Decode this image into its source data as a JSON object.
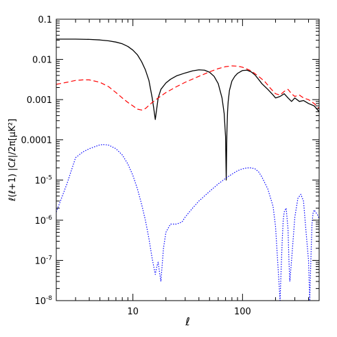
{
  "chart_data": {
    "type": "line",
    "title": "",
    "xlabel": "ℓ",
    "ylabel": "ℓ(ℓ+1) |Cℓ|/2π[μK²]",
    "xscale": "log",
    "yscale": "log",
    "xlim": [
      2,
      500
    ],
    "ylim": [
      1e-08,
      0.1
    ],
    "grid": false,
    "legend": "none",
    "x_ticks": [
      {
        "value": 10,
        "label": "10"
      },
      {
        "value": 100,
        "label": "100"
      }
    ],
    "y_ticks": [
      {
        "value": 0.1,
        "label": "0.1"
      },
      {
        "value": 0.01,
        "label": "0.01"
      },
      {
        "value": 0.001,
        "label": "0.001"
      },
      {
        "value": 0.0001,
        "label": "0.0001"
      },
      {
        "value": 1e-05,
        "label": "10",
        "exp": "-5"
      },
      {
        "value": 1e-06,
        "label": "10",
        "exp": "-6"
      },
      {
        "value": 1e-07,
        "label": "10",
        "exp": "-7"
      },
      {
        "value": 1e-08,
        "label": "10",
        "exp": "-8"
      }
    ],
    "series": [
      {
        "color": "#000000",
        "style": "solid",
        "x": [
          2,
          3,
          4,
          5,
          6,
          7,
          8,
          9,
          10,
          11,
          12,
          13,
          14,
          15,
          15.5,
          16,
          16.5,
          17,
          18,
          20,
          22,
          25,
          30,
          35,
          40,
          45,
          50,
          55,
          60,
          65,
          68,
          70,
          71,
          72,
          73,
          74,
          76,
          80,
          85,
          90,
          100,
          110,
          120,
          130,
          140,
          150,
          170,
          190,
          200,
          220,
          240,
          260,
          280,
          300,
          330,
          360,
          400,
          450,
          500
        ],
        "y": [
          0.032,
          0.032,
          0.0315,
          0.0305,
          0.029,
          0.027,
          0.0245,
          0.021,
          0.017,
          0.013,
          0.0088,
          0.0055,
          0.003,
          0.0011,
          0.0006,
          0.00032,
          0.0006,
          0.0011,
          0.0018,
          0.0026,
          0.0032,
          0.0039,
          0.0046,
          0.0052,
          0.0055,
          0.0054,
          0.0048,
          0.0038,
          0.0025,
          0.0011,
          0.00045,
          0.00012,
          1e-05,
          0.00015,
          0.0005,
          0.0009,
          0.0017,
          0.0029,
          0.0038,
          0.0045,
          0.0053,
          0.0054,
          0.0049,
          0.0041,
          0.0032,
          0.0025,
          0.0018,
          0.0013,
          0.0011,
          0.0012,
          0.0014,
          0.0011,
          0.0009,
          0.0011,
          0.0009,
          0.00095,
          0.0008,
          0.0007,
          0.0005
        ]
      },
      {
        "color": "#ff0000",
        "style": "dashed",
        "x": [
          2,
          2.5,
          3,
          3.5,
          4,
          5,
          6,
          7,
          8,
          9,
          10,
          11,
          12,
          13,
          14,
          15,
          17,
          20,
          25,
          30,
          40,
          50,
          60,
          70,
          80,
          90,
          100,
          120,
          140,
          160,
          180,
          200,
          220,
          240,
          260,
          280,
          300,
          330,
          360,
          400,
          450,
          500
        ],
        "y": [
          0.0024,
          0.0027,
          0.003,
          0.0031,
          0.0031,
          0.0027,
          0.0021,
          0.0015,
          0.0011,
          0.00085,
          0.0007,
          0.00058,
          0.00055,
          0.0006,
          0.00072,
          0.00085,
          0.0011,
          0.0015,
          0.0021,
          0.0027,
          0.0038,
          0.0049,
          0.0059,
          0.0066,
          0.0069,
          0.0068,
          0.0064,
          0.0052,
          0.0038,
          0.0028,
          0.0019,
          0.0014,
          0.0013,
          0.0016,
          0.0018,
          0.0014,
          0.0012,
          0.0013,
          0.0011,
          0.001,
          0.0008,
          0.0006
        ]
      },
      {
        "color": "#0000ff",
        "style": "dotted",
        "x": [
          2,
          2.5,
          3,
          3.5,
          4,
          5,
          5.5,
          6,
          7,
          8,
          9,
          10,
          11,
          12,
          13,
          14,
          15,
          16,
          16.5,
          17,
          17.5,
          18,
          19,
          20,
          22,
          25,
          28,
          30,
          35,
          40,
          50,
          60,
          70,
          80,
          90,
          100,
          110,
          120,
          130,
          140,
          150,
          170,
          190,
          200,
          210,
          220,
          225,
          230,
          235,
          240,
          250,
          260,
          265,
          270,
          280,
          300,
          320,
          340,
          360,
          380,
          400,
          410,
          420,
          430,
          440,
          450,
          480,
          500
        ],
        "y": [
          1.6e-06,
          8e-06,
          3.6e-05,
          5e-05,
          6e-05,
          7.5e-05,
          7.6e-05,
          7.4e-05,
          6e-05,
          4.2e-05,
          2.5e-05,
          1.3e-05,
          6e-06,
          2.5e-06,
          1e-06,
          3.5e-07,
          1.1e-07,
          4.5e-08,
          7e-08,
          9e-08,
          5e-08,
          3e-08,
          2e-07,
          5e-07,
          8e-07,
          8e-07,
          9e-07,
          1.2e-06,
          2e-06,
          3e-06,
          5.2e-06,
          8e-06,
          1.1e-05,
          1.4e-05,
          1.7e-05,
          1.9e-05,
          2e-05,
          2e-05,
          1.9e-05,
          1.6e-05,
          1.2e-05,
          6e-06,
          2.2e-06,
          7e-07,
          8e-08,
          1e-08,
          6e-08,
          3e-07,
          1e-06,
          1.6e-06,
          2e-06,
          6e-07,
          1e-07,
          3e-08,
          1e-07,
          1.2e-06,
          3.5e-06,
          4.4e-06,
          3e-06,
          5e-07,
          1e-07,
          1e-08,
          1e-07,
          8e-07,
          1.5e-06,
          1.8e-06,
          1.4e-06,
          1.1e-06
        ]
      }
    ]
  }
}
